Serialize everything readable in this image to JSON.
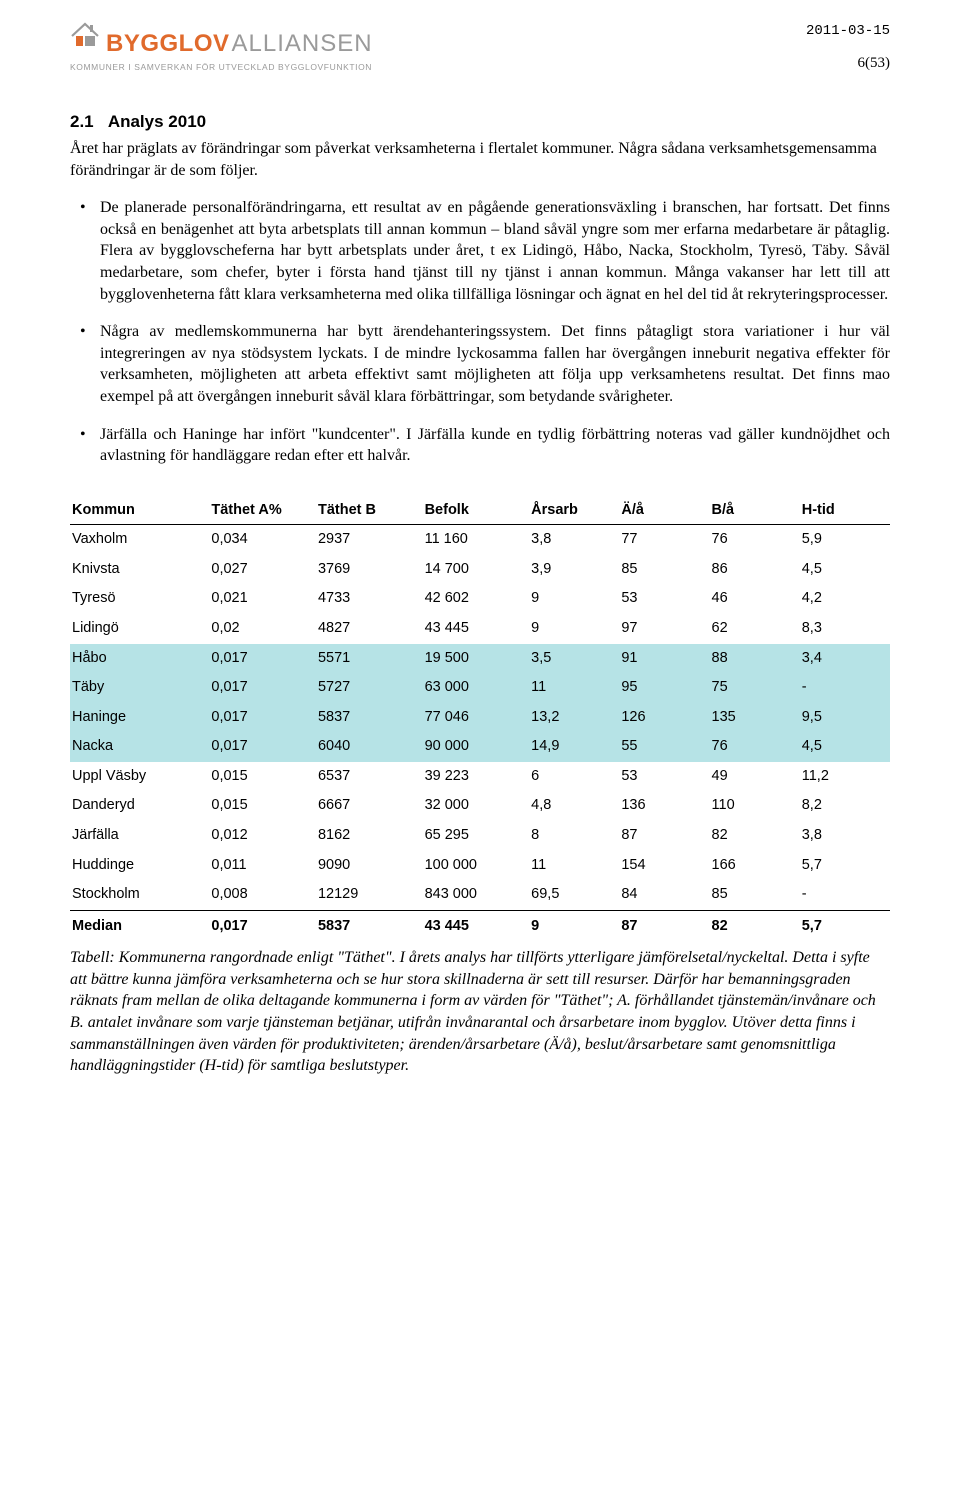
{
  "header": {
    "logo_bold": "BYGGLOV",
    "logo_light": "ALLIANSEN",
    "logo_sub": "KOMMUNER I SAMVERKAN FÖR UTVECKLAD BYGGLOVFUNKTION",
    "date": "2011-03-15",
    "page": "6(53)"
  },
  "section": {
    "number": "2.1",
    "title": "Analys 2010",
    "intro": "Året har präglats av förändringar som påverkat verksamheterna i flertalet kommuner. Några sådana verksamhetsgemensamma förändringar är de som följer."
  },
  "bullets": [
    "De planerade personalförändringarna, ett resultat av en pågående generationsväxling i branschen, har fortsatt. Det finns också en benägenhet att byta arbetsplats till annan kommun – bland såväl yngre som mer erfarna medarbetare är påtaglig. Flera av bygglovscheferna har bytt arbetsplats under året, t ex Lidingö, Håbo, Nacka, Stockholm, Tyresö, Täby. Såväl medarbetare, som chefer, byter i första hand tjänst till ny tjänst i annan kommun. Många vakanser har lett till att bygglovenheterna fått klara verksamheterna med olika tillfälliga lösningar och ägnat en hel del tid åt rekryteringsprocesser.",
    "Några av medlemskommunerna har bytt ärendehanteringssystem. Det finns påtagligt stora variationer i hur väl integreringen av nya stödsystem lyckats. I de mindre lyckosamma fallen har övergången inneburit negativa effekter för verksamheten, möjligheten att arbeta effektivt samt möjligheten att följa upp verksamhetens resultat. Det finns mao exempel på att övergången inneburit såväl klara förbättringar, som betydande svårigheter.",
    "Järfälla och Haninge har infört \"kundcenter\". I Järfälla kunde en tydlig förbättring noteras vad gäller kundnöjdhet och avlastning för handläggare redan efter ett halvår."
  ],
  "table": {
    "columns": [
      "Kommun",
      "Täthet A%",
      "Täthet B",
      "Befolk",
      "Årsarb",
      "Ä/å",
      "B/å",
      "H-tid"
    ],
    "col_widths": [
      "17%",
      "13%",
      "13%",
      "13%",
      "11%",
      "11%",
      "11%",
      "11%"
    ],
    "rows": [
      {
        "cells": [
          "Vaxholm",
          "0,034",
          "2937",
          "11 160",
          "3,8",
          "77",
          "76",
          "5,9"
        ],
        "hl": false
      },
      {
        "cells": [
          "Knivsta",
          "0,027",
          "3769",
          "14 700",
          "3,9",
          "85",
          "86",
          "4,5"
        ],
        "hl": false
      },
      {
        "cells": [
          "Tyresö",
          "0,021",
          "4733",
          "42 602",
          "9",
          "53",
          "46",
          "4,2"
        ],
        "hl": false
      },
      {
        "cells": [
          "Lidingö",
          "0,02",
          "4827",
          "43 445",
          "9",
          "97",
          "62",
          "8,3"
        ],
        "hl": false
      },
      {
        "cells": [
          "Håbo",
          "0,017",
          "5571",
          "19 500",
          "3,5",
          "91",
          "88",
          "3,4"
        ],
        "hl": true
      },
      {
        "cells": [
          "Täby",
          "0,017",
          "5727",
          "63 000",
          "11",
          "95",
          "75",
          "-"
        ],
        "hl": true
      },
      {
        "cells": [
          "Haninge",
          "0,017",
          "5837",
          "77 046",
          "13,2",
          "126",
          "135",
          "9,5"
        ],
        "hl": true
      },
      {
        "cells": [
          "Nacka",
          "0,017",
          "6040",
          "90 000",
          "14,9",
          "55",
          "76",
          "4,5"
        ],
        "hl": true
      },
      {
        "cells": [
          "Uppl Väsby",
          "0,015",
          "6537",
          "39 223",
          "6",
          "53",
          "49",
          "11,2"
        ],
        "hl": false
      },
      {
        "cells": [
          "Danderyd",
          "0,015",
          "6667",
          "32 000",
          "4,8",
          "136",
          "110",
          "8,2"
        ],
        "hl": false
      },
      {
        "cells": [
          "Järfälla",
          "0,012",
          "8162",
          "65 295",
          "8",
          "87",
          "82",
          "3,8"
        ],
        "hl": false
      },
      {
        "cells": [
          "Huddinge",
          "0,011",
          "9090",
          "100 000",
          "11",
          "154",
          "166",
          "5,7"
        ],
        "hl": false
      },
      {
        "cells": [
          "Stockholm",
          "0,008",
          "12129",
          "843 000",
          "69,5",
          "84",
          "85",
          "-"
        ],
        "hl": false
      }
    ],
    "median": [
      "Median",
      "0,017",
      "5837",
      "43 445",
      "9",
      "87",
      "82",
      "5,7"
    ]
  },
  "caption": "Tabell: Kommunerna rangordnade enligt \"Täthet\". I årets analys har tillförts ytterligare jämförelsetal/nyckeltal. Detta i syfte att bättre kunna jämföra verksamheterna och se hur stora skillnaderna är sett till resurser. Därför har bemanningsgraden räknats fram mellan de olika deltagande kommunerna i form av värden för \"Täthet\"; A. förhållandet tjänstemän/invånare och B. antalet invånare som varje tjänsteman betjänar, utifrån invånarantal och årsarbetare inom bygglov. Utöver detta finns i sammanställningen även värden för produktiviteten; ärenden/årsarbetare (Ä/å), beslut/årsarbetare samt genomsnittliga handläggningstider (H-tid) för samtliga beslutstyper.",
  "colors": {
    "orange": "#e06a2c",
    "gray": "#9a9a9a",
    "highlight": "#b6e3e6",
    "text": "#000000",
    "bg": "#ffffff"
  }
}
